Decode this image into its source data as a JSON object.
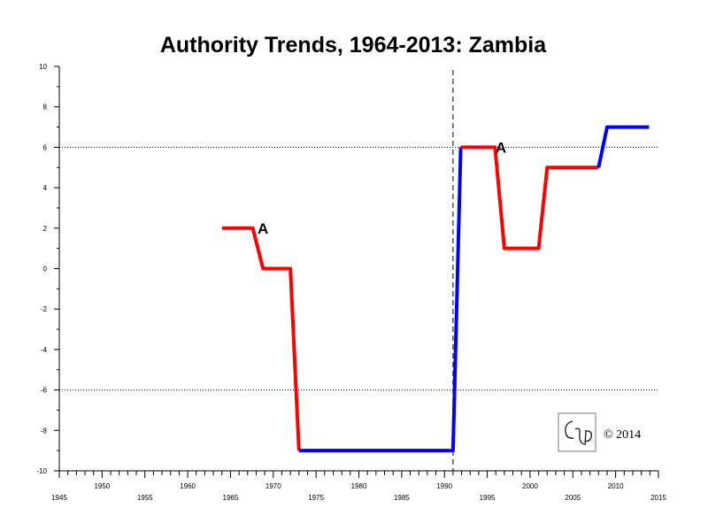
{
  "chart_data": {
    "type": "line",
    "title": "Authority Trends, 1964-2013: Zambia",
    "xlabel": "",
    "ylabel": "",
    "xlim": [
      1945,
      2015
    ],
    "ylim": [
      -10,
      10
    ],
    "x_major_ticks": [
      1945,
      1950,
      1955,
      1960,
      1965,
      1970,
      1975,
      1980,
      1985,
      1990,
      1995,
      2000,
      2005,
      2010,
      2015
    ],
    "y_ticks": [
      -10,
      -8,
      -6,
      -4,
      -2,
      0,
      2,
      4,
      6,
      8,
      10
    ],
    "reference_lines": [
      {
        "axis": "y",
        "value": 6,
        "style": "dotted"
      },
      {
        "axis": "y",
        "value": -6,
        "style": "dotted"
      },
      {
        "axis": "x",
        "value": 1991,
        "style": "dashed"
      }
    ],
    "segments": [
      {
        "color": "#ff0000",
        "points": [
          [
            1964,
            2
          ],
          [
            1967.6,
            2
          ],
          [
            1968.8,
            0
          ],
          [
            1972,
            0
          ],
          [
            1973,
            -9
          ]
        ]
      },
      {
        "color": "#0000ff",
        "points": [
          [
            1973,
            -9
          ],
          [
            1991,
            -9
          ],
          [
            1991.9,
            6
          ]
        ]
      },
      {
        "color": "#ff0000",
        "points": [
          [
            1991.9,
            6
          ],
          [
            1995.9,
            6
          ],
          [
            1997,
            1
          ],
          [
            2001,
            1
          ],
          [
            2002,
            5
          ],
          [
            2008,
            5
          ]
        ]
      },
      {
        "color": "#0000ff",
        "points": [
          [
            2008,
            5
          ],
          [
            2009,
            7
          ],
          [
            2013.9,
            7
          ]
        ]
      }
    ],
    "annotations": [
      {
        "text": "A",
        "x": 1968.8,
        "y": 2
      },
      {
        "text": "A",
        "x": 1996.6,
        "y": 6
      }
    ],
    "grid": false,
    "legend": "none"
  },
  "copyright": "© 2014",
  "logo": {
    "text": "CSP"
  }
}
